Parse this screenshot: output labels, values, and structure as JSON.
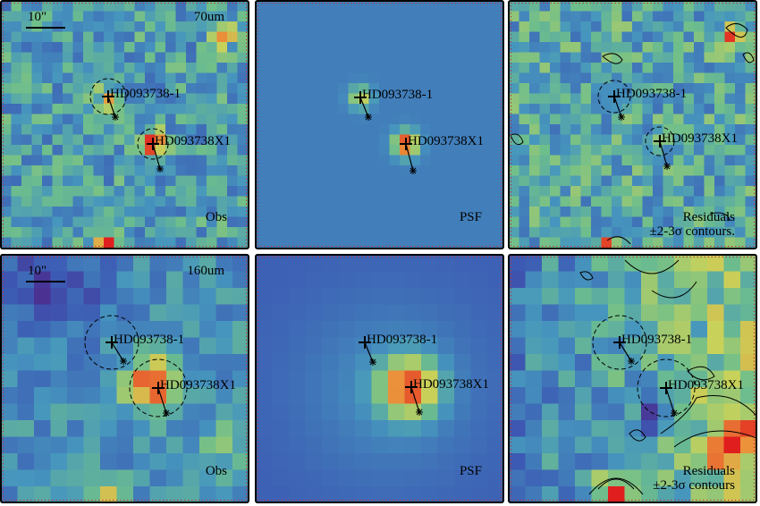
{
  "panels": [
    {
      "scale_bar": "10\"",
      "band": "70um",
      "sources": [
        "HD093738-1",
        "HD093738X1"
      ],
      "label": "Obs"
    },
    {
      "sources": [
        "HD093738-1",
        "HD093738X1"
      ],
      "label": "PSF"
    },
    {
      "sources": [
        "HD093738-1",
        "HD093738X1"
      ],
      "label": "Residuals",
      "note": "±2-3σ contours."
    },
    {
      "scale_bar": "10\"",
      "band": "160um",
      "sources": [
        "HD093738-1",
        "HD093738X1"
      ],
      "label": "Obs"
    },
    {
      "sources": [
        "HD093738-1",
        "HD093738X1"
      ],
      "label": "PSF"
    },
    {
      "sources": [
        "HD093738-1",
        "HD093738X1"
      ],
      "label": "Residuals",
      "note": "±2-3σ contours"
    }
  ]
}
